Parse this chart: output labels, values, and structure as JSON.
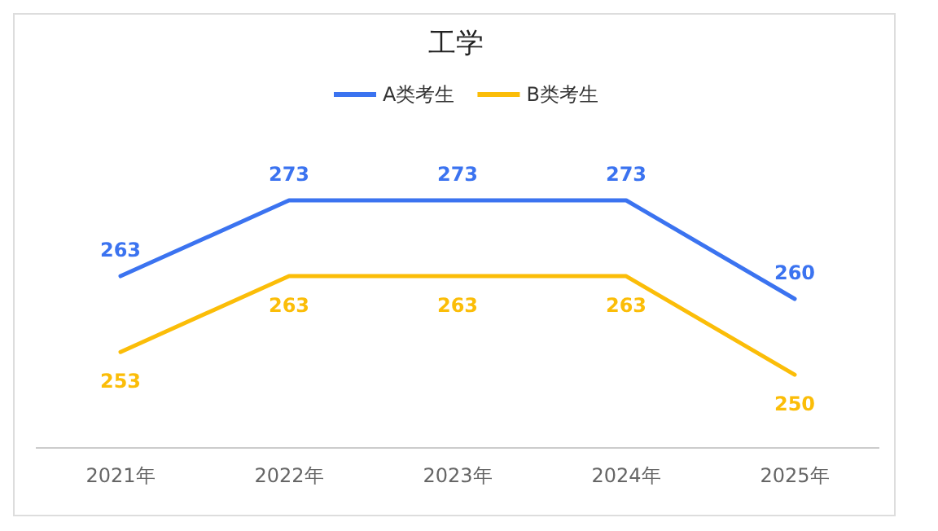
{
  "chart_data": {
    "type": "line",
    "title": "工学",
    "categories": [
      "2021年",
      "2022年",
      "2023年",
      "2024年",
      "2025年"
    ],
    "series": [
      {
        "name": "A类考生",
        "color": "#3b73f0",
        "values": [
          263,
          273,
          273,
          273,
          260
        ]
      },
      {
        "name": "B类考生",
        "color": "#fbbd08",
        "values": [
          253,
          263,
          263,
          263,
          250
        ]
      }
    ],
    "data_labels": true,
    "legend": "top",
    "marker": "none",
    "line_style": "solid"
  }
}
